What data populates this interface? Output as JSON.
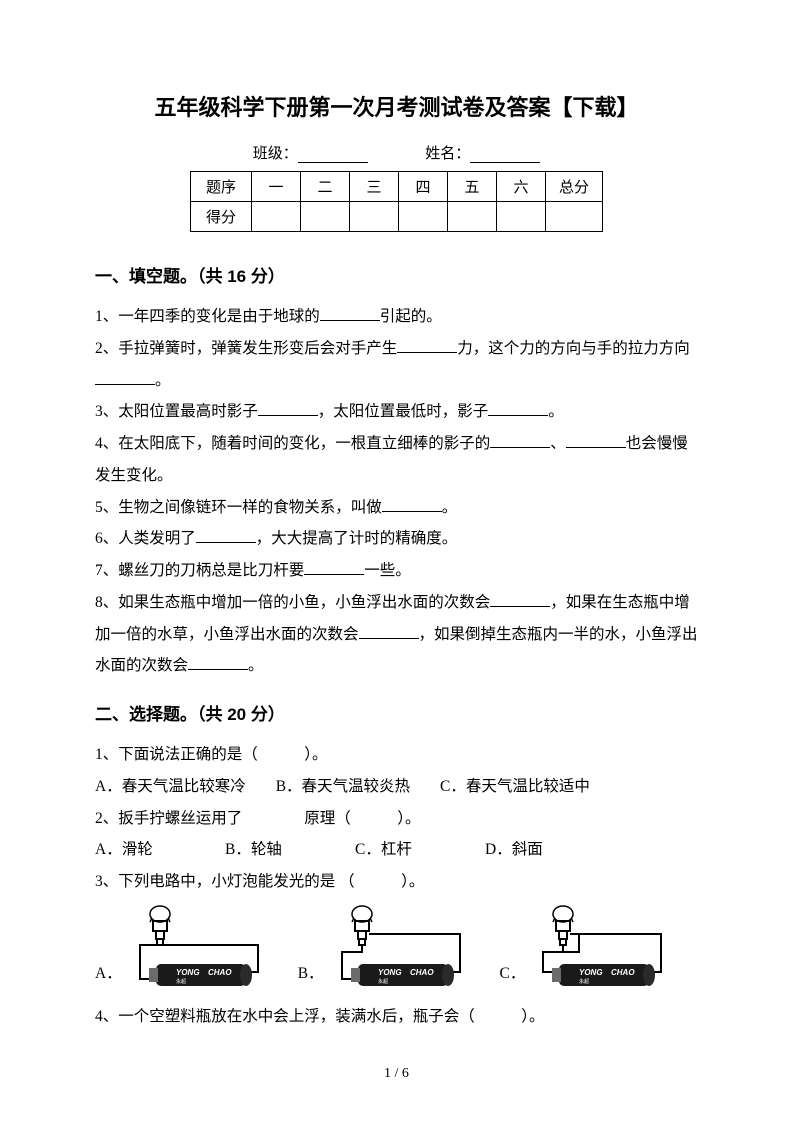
{
  "title": "五年级科学下册第一次月考测试卷及答案【下载】",
  "meta": {
    "class_label": "班级：",
    "name_label": "姓名："
  },
  "table": {
    "header": [
      "题序",
      "一",
      "二",
      "三",
      "四",
      "五",
      "六",
      "总分"
    ],
    "score_label": "得分"
  },
  "section1": {
    "title": "一、填空题。（共 16 分）",
    "items": [
      "1、一年四季的变化是由于地球的________引起的。",
      "2、手拉弹簧时，弹簧发生形变后会对手产生________力，这个力的方向与手的拉力方向 ________。",
      "3、太阳位置最高时影子________，太阳位置最低时，影子________。",
      "4、在太阳底下，随着时间的变化，一根直立细棒的影子的________、________也会慢慢发生变化。",
      "5、生物之间像链环一样的食物关系，叫做________。",
      "6、人类发明了________，大大提高了计时的精确度。",
      "7、螺丝刀的刀柄总是比刀杆要________一些。",
      "8、如果生态瓶中增加一倍的小鱼，小鱼浮出水面的次数会________，如果在生态瓶中增加一倍的水草，小鱼浮出水面的次数会________，如果倒掉生态瓶内一半的水，小鱼浮出水面的次数会________。"
    ]
  },
  "section2": {
    "title": "二、选择题。（共 20 分）",
    "q1": {
      "stem": "1、下面说法正确的是（　　　）。",
      "opts": [
        "A．春天气温比较寒冷",
        "B．春天气温较炎热",
        "C．春天气温比较适中"
      ]
    },
    "q2": {
      "stem": "2、扳手拧螺丝运用了　　　　原理（　　　）。",
      "opts": [
        "A．滑轮",
        "B．轮轴",
        "C．杠杆",
        "D．斜面"
      ]
    },
    "q3": {
      "stem": "3、下列电路中，小灯泡能发光的是 （　　　）。",
      "opts": [
        "A．",
        "B．",
        "C．"
      ]
    },
    "q4": {
      "stem": "4、一个空塑料瓶放在水中会上浮，装满水后，瓶子会（　　　）。"
    }
  },
  "circuit": {
    "battery_text1": "YONG",
    "battery_text2": "CHAO",
    "battery_body": "#1a1a1a",
    "battery_tip": "#6b6b6b",
    "bulb_stroke": "#000000",
    "wire": "#000000"
  },
  "colors": {
    "text": "#000000",
    "bg": "#ffffff"
  },
  "fonts": {
    "title_size": 22,
    "sec_size": 17,
    "body_size": 15.5
  },
  "page_num": "1 / 6"
}
